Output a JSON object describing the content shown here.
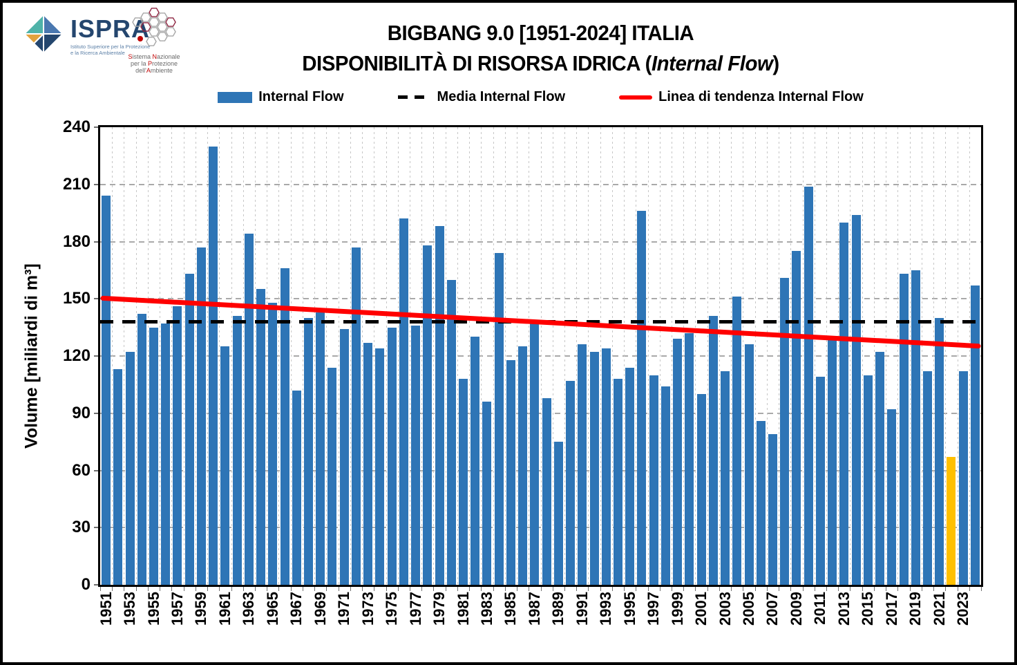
{
  "header": {
    "title": "BIGBANG 9.0 [1951-2024] ITALIA",
    "subtitle_prefix": "DISPONIBILITÀ DI RISORSA IDRICA (",
    "subtitle_italic": "Internal Flow",
    "subtitle_suffix": ")",
    "ispra": {
      "name": "ISPRA",
      "sub1": "Istituto Superiore per la Protezione",
      "sub2": "e la Ricerca Ambientale"
    },
    "snpa_segments": [
      [
        {
          "t": "S",
          "red": true
        },
        {
          "t": "istema "
        },
        {
          "t": "N",
          "red": true
        },
        {
          "t": "azionale"
        }
      ],
      [
        {
          "t": "per la "
        },
        {
          "t": "P",
          "red": true
        },
        {
          "t": "rotezione"
        }
      ],
      [
        {
          "t": "dell'"
        },
        {
          "t": "A",
          "red": true
        },
        {
          "t": "mbiente"
        }
      ]
    ]
  },
  "legend": [
    {
      "label": "Internal Flow",
      "swatch": "bar",
      "color": "#2E75B6"
    },
    {
      "label": "Media Internal Flow",
      "swatch": "dashed",
      "color": "#000000"
    },
    {
      "label": "Linea di tendenza Internal Flow",
      "swatch": "line",
      "color": "#FF0000"
    }
  ],
  "chart_data": {
    "type": "bar",
    "title": "BIGBANG 9.0 [1951-2024] ITALIA",
    "subtitle": "DISPONIBILITÀ DI RISORSA IDRICA (Internal Flow)",
    "series_name": "Internal Flow",
    "ylabel": "Volume [miliardi di m³]",
    "ylim": [
      0,
      240
    ],
    "yticks": [
      0,
      30,
      60,
      90,
      120,
      150,
      180,
      210,
      240
    ],
    "x_label_step": 2,
    "grid": true,
    "legend_position": "top",
    "bar_color": "#2E75B6",
    "highlight_year": 2022,
    "highlight_value": 67,
    "highlight_color": "#FFC000",
    "years": [
      1951,
      1952,
      1953,
      1954,
      1955,
      1956,
      1957,
      1958,
      1959,
      1960,
      1961,
      1962,
      1963,
      1964,
      1965,
      1966,
      1967,
      1968,
      1969,
      1970,
      1971,
      1972,
      1973,
      1974,
      1975,
      1976,
      1977,
      1978,
      1979,
      1980,
      1981,
      1982,
      1983,
      1984,
      1985,
      1986,
      1987,
      1988,
      1989,
      1990,
      1991,
      1992,
      1993,
      1994,
      1995,
      1996,
      1997,
      1998,
      1999,
      2000,
      2001,
      2002,
      2003,
      2004,
      2005,
      2006,
      2007,
      2008,
      2009,
      2010,
      2011,
      2012,
      2013,
      2014,
      2015,
      2016,
      2017,
      2018,
      2019,
      2020,
      2021,
      2022,
      2023,
      2024
    ],
    "values": [
      204,
      113,
      122,
      142,
      135,
      137,
      146,
      163,
      177,
      230,
      125,
      141,
      184,
      155,
      148,
      166,
      102,
      140,
      143,
      114,
      134,
      177,
      127,
      124,
      135,
      192,
      136,
      178,
      188,
      160,
      108,
      130,
      96,
      174,
      118,
      125,
      137,
      98,
      75,
      107,
      126,
      122,
      124,
      108,
      114,
      196,
      110,
      104,
      129,
      132,
      100,
      141,
      112,
      151,
      126,
      86,
      79,
      161,
      175,
      209,
      109,
      130,
      190,
      194,
      110,
      122,
      92,
      163,
      165,
      112,
      140,
      67,
      112,
      157
    ],
    "media_line": {
      "label": "Media Internal Flow",
      "value": 138,
      "color": "#000000"
    },
    "trend_line": {
      "label": "Linea di tendenza Internal Flow",
      "start_value": 150.3,
      "end_value": 125.2,
      "color": "#FF0000"
    }
  }
}
